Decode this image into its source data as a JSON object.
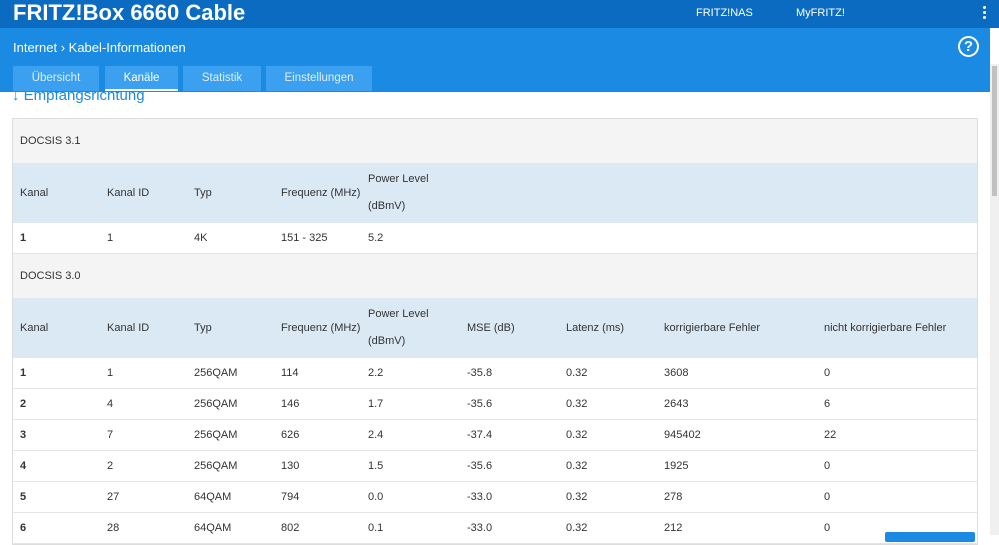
{
  "header": {
    "title": "FRITZ!Box 6660 Cable",
    "links": [
      "FRITZ!NAS",
      "MyFRITZ!"
    ]
  },
  "breadcrumb": [
    "Internet",
    "Kabel-Informationen"
  ],
  "help": "?",
  "tabs": [
    "Übersicht",
    "Kanäle",
    "Statistik",
    "Einstellungen"
  ],
  "active_tab": 1,
  "section_title": "Empfangsrichtung",
  "tables": [
    {
      "title": "DOCSIS 3.1",
      "columns": [
        "Kanal",
        "Kanal ID",
        "Typ",
        "Frequenz (MHz)",
        "Power Level (dBmV)"
      ],
      "rows": [
        [
          "1",
          "1",
          "4K",
          "151 - 325",
          "5.2"
        ]
      ]
    },
    {
      "title": "DOCSIS 3.0",
      "columns": [
        "Kanal",
        "Kanal ID",
        "Typ",
        "Frequenz (MHz)",
        "Power Level (dBmV)",
        "MSE (dB)",
        "Latenz (ms)",
        "korrigierbare Fehler",
        "nicht korrigierbare Fehler"
      ],
      "rows": [
        [
          "1",
          "1",
          "256QAM",
          "114",
          "2.2",
          "-35.8",
          "0.32",
          "3608",
          "0"
        ],
        [
          "2",
          "4",
          "256QAM",
          "146",
          "1.7",
          "-35.6",
          "0.32",
          "2643",
          "6"
        ],
        [
          "3",
          "7",
          "256QAM",
          "626",
          "2.4",
          "-37.4",
          "0.32",
          "945402",
          "22"
        ],
        [
          "4",
          "2",
          "256QAM",
          "130",
          "1.5",
          "-35.6",
          "0.32",
          "1925",
          "0"
        ],
        [
          "5",
          "27",
          "64QAM",
          "794",
          "0.0",
          "-33.0",
          "0.32",
          "278",
          "0"
        ],
        [
          "6",
          "28",
          "64QAM",
          "802",
          "0.1",
          "-33.0",
          "0.32",
          "212",
          "0"
        ]
      ]
    }
  ]
}
